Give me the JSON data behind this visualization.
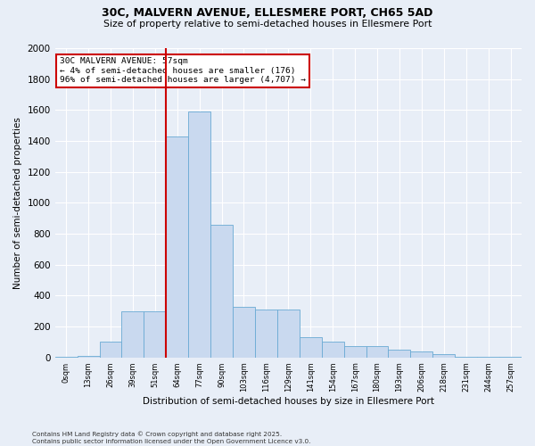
{
  "title1": "30C, MALVERN AVENUE, ELLESMERE PORT, CH65 5AD",
  "title2": "Size of property relative to semi-detached houses in Ellesmere Port",
  "xlabel": "Distribution of semi-detached houses by size in Ellesmere Port",
  "ylabel": "Number of semi-detached properties",
  "footnote": "Contains HM Land Registry data © Crown copyright and database right 2025.\nContains public sector information licensed under the Open Government Licence v3.0.",
  "bin_labels": [
    "0sqm",
    "13sqm",
    "26sqm",
    "39sqm",
    "51sqm",
    "64sqm",
    "77sqm",
    "90sqm",
    "103sqm",
    "116sqm",
    "129sqm",
    "141sqm",
    "154sqm",
    "167sqm",
    "180sqm",
    "193sqm",
    "206sqm",
    "218sqm",
    "231sqm",
    "244sqm",
    "257sqm"
  ],
  "bar_values": [
    5,
    10,
    100,
    300,
    300,
    1430,
    1590,
    860,
    330,
    310,
    310,
    130,
    100,
    75,
    75,
    50,
    40,
    20,
    5,
    5,
    2
  ],
  "bar_color": "#c9d9ef",
  "bar_edge_color": "#6aaad4",
  "vline_bin_index": 4,
  "vline_color": "#cc0000",
  "annotation_title": "30C MALVERN AVENUE: 57sqm",
  "annotation_line1": "← 4% of semi-detached houses are smaller (176)",
  "annotation_line2": "96% of semi-detached houses are larger (4,707) →",
  "annotation_box_color": "#ffffff",
  "annotation_box_edge": "#cc0000",
  "ylim": [
    0,
    2000
  ],
  "yticks": [
    0,
    200,
    400,
    600,
    800,
    1000,
    1200,
    1400,
    1600,
    1800,
    2000
  ],
  "bg_color": "#e8eef7",
  "plot_bg_color": "#e8eef7",
  "grid_color": "#ffffff"
}
